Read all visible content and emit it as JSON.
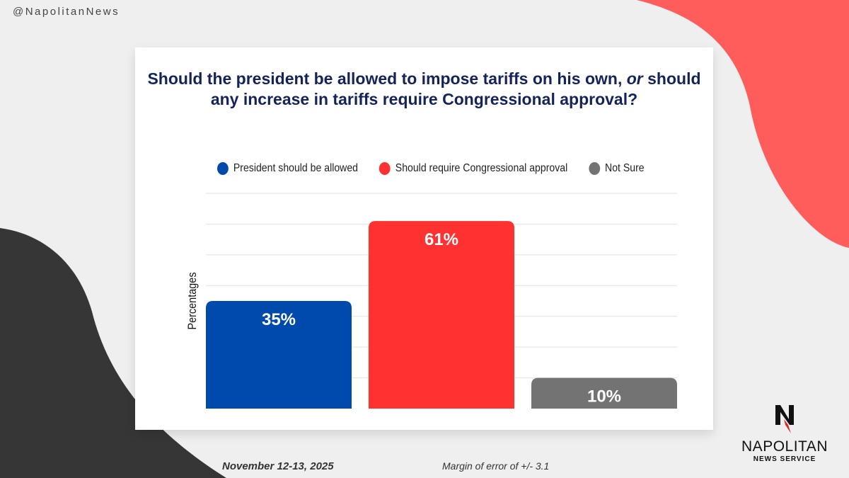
{
  "handle": "@NapolitanNews",
  "footer": {
    "date": "November 12-13, 2025",
    "margin": "Margin of error of +/- 3.1"
  },
  "logo": {
    "name": "NAPOLITAN",
    "sub": "NEWS SERVICE"
  },
  "chart_data": {
    "type": "bar",
    "title_parts": [
      "Should the president be allowed to impose tariffs on his own, ",
      "or",
      " should any increase in tariffs require Congressional approval?"
    ],
    "categories": [
      "President should be allowed",
      "Should require Congressional approval",
      "Not Sure"
    ],
    "values": [
      35,
      61,
      10
    ],
    "labels": [
      "35%",
      "61%",
      "10%"
    ],
    "colors": [
      "#004aad",
      "#ff3131",
      "#737373"
    ],
    "ylabel": "Percentages",
    "ylim": [
      0,
      70
    ],
    "grid": true,
    "legend": "top"
  }
}
